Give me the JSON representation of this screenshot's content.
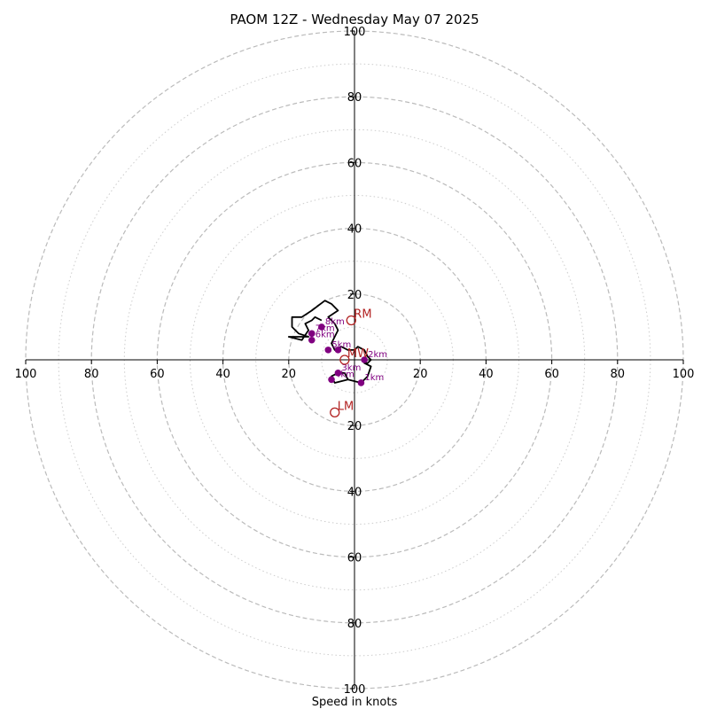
{
  "chart_data": {
    "type": "hodograph",
    "title": "PAOM 12Z - Wednesday May 07 2025",
    "xlabel": "Speed in knots",
    "range": [
      -100,
      100
    ],
    "ring_dashed": [
      20,
      40,
      60,
      80,
      100
    ],
    "ring_dotted": [
      10,
      30,
      50,
      70,
      90
    ],
    "tick_labels": [
      "20",
      "40",
      "60",
      "80",
      "100"
    ],
    "colors": {
      "trace": "#000000",
      "height_marker": "#800080",
      "motion_marker": "#b22222",
      "ring": "#bbbbbb"
    },
    "trace": [
      [
        -2,
        -6
      ],
      [
        -6,
        -7
      ],
      [
        -7,
        -5
      ],
      [
        -5,
        -4
      ],
      [
        -3,
        -4
      ],
      [
        -2,
        -6
      ],
      [
        2,
        -7
      ],
      [
        4,
        -5
      ],
      [
        5,
        -2
      ],
      [
        3,
        -1
      ],
      [
        4,
        -1
      ],
      [
        5,
        0
      ],
      [
        4,
        1
      ],
      [
        3,
        3
      ],
      [
        1,
        4
      ],
      [
        0,
        3
      ],
      [
        -2,
        3
      ],
      [
        -4,
        4
      ],
      [
        -6,
        3
      ],
      [
        -7,
        5
      ],
      [
        -6,
        7
      ],
      [
        -5,
        9
      ],
      [
        -6,
        11
      ],
      [
        -8,
        13
      ],
      [
        -5,
        15
      ],
      [
        -7,
        17
      ],
      [
        -9,
        18
      ],
      [
        -13,
        15
      ],
      [
        -16,
        13
      ],
      [
        -19,
        13
      ],
      [
        -19,
        10
      ],
      [
        -17,
        8
      ],
      [
        -14,
        7
      ],
      [
        -20,
        7
      ],
      [
        -16,
        6
      ],
      [
        -14,
        9
      ],
      [
        -15,
        11
      ],
      [
        -13,
        12
      ],
      [
        -12,
        13
      ],
      [
        -10,
        12
      ]
    ],
    "height_markers": [
      {
        "label": "1km",
        "u": 2,
        "v": -7
      },
      {
        "label": "2km",
        "u": 3,
        "v": 0
      },
      {
        "label": "3km",
        "u": -5,
        "v": -4
      },
      {
        "label": "4km",
        "u": -7,
        "v": -6
      },
      {
        "label": "5km",
        "u": -8,
        "v": 3
      },
      {
        "label": "6km",
        "u": -13,
        "v": 6
      },
      {
        "label": "7km",
        "u": -13,
        "v": 8
      },
      {
        "label": "8km",
        "u": -10,
        "v": 10
      },
      {
        "label": "",
        "u": -5,
        "v": 3
      }
    ],
    "storm_motion": [
      {
        "label": "RM",
        "u": -1,
        "v": 12
      },
      {
        "label": "LM",
        "u": -6,
        "v": -16
      },
      {
        "label": "MW",
        "u": -3,
        "v": 0
      }
    ]
  }
}
